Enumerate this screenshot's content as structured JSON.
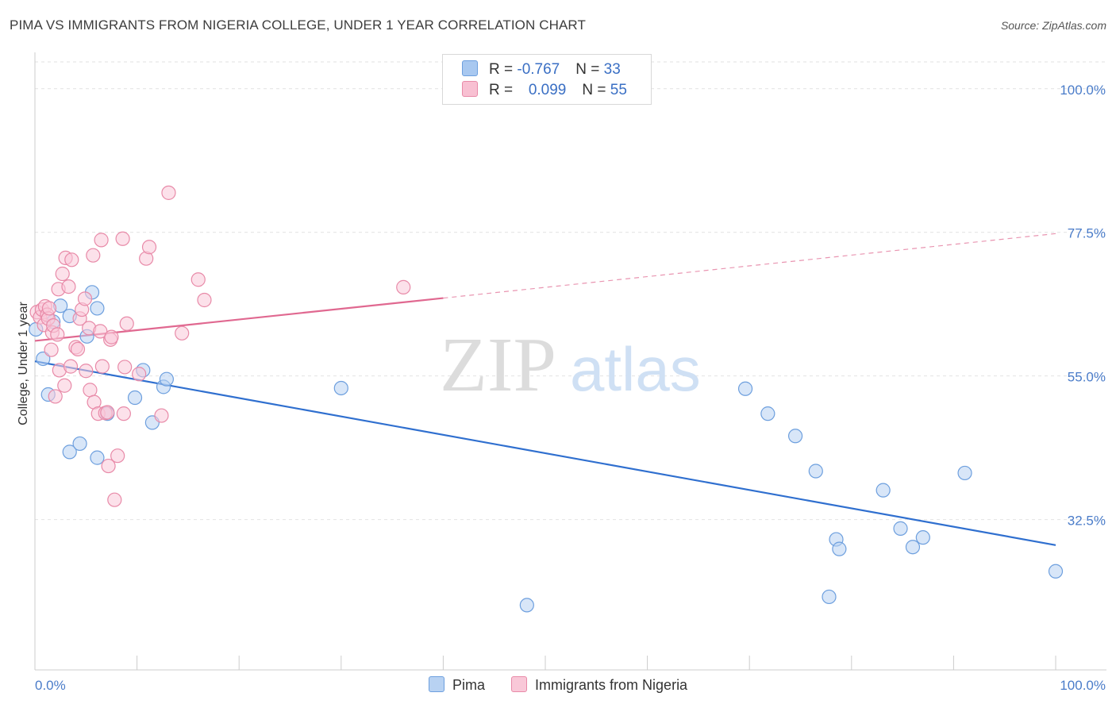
{
  "title": "PIMA VS IMMIGRANTS FROM NIGERIA COLLEGE, UNDER 1 YEAR CORRELATION CHART",
  "source": "Source: ZipAtlas.com",
  "watermark": {
    "zip": "ZIP",
    "atlas": "atlas"
  },
  "legend": {
    "rows": [
      {
        "r_label": "R = ",
        "r_value": "-0.767",
        "n_label": "N = ",
        "n_value": "33",
        "color": "#a8c8f0",
        "border": "#6d9fde"
      },
      {
        "r_label": "R = ",
        "r_value": "0.099",
        "n_label": "N = ",
        "n_value": "55",
        "color": "#f8c0d2",
        "border": "#e88aa8"
      }
    ]
  },
  "bottom_legend": [
    {
      "label": "Pima",
      "color": "#b8d2f2",
      "border": "#6d9fde"
    },
    {
      "label": "Immigrants from Nigeria",
      "color": "#f9c8d8",
      "border": "#e88aa8"
    }
  ],
  "chart_data": {
    "type": "scatter",
    "title": "PIMA VS IMMIGRANTS FROM NIGERIA COLLEGE, UNDER 1 YEAR CORRELATION CHART",
    "ylabel": "College, Under 1 year",
    "xlabel": "",
    "x_tick_labels": [
      "0.0%",
      "100.0%"
    ],
    "y_tick_labels": [
      "100.0%",
      "77.5%",
      "55.0%",
      "32.5%"
    ],
    "y_ticks": [
      100.0,
      77.5,
      55.0,
      32.5
    ],
    "xlim": [
      0,
      100
    ],
    "ylim": [
      9.7,
      104.2
    ],
    "grid": true,
    "series": [
      {
        "name": "Pima",
        "color": "#6d9fde",
        "fill": "#b8d2f2",
        "trend_color": "#2f6fcf",
        "trend": {
          "x0": 0.0,
          "y0": 57.3,
          "x1": 100.0,
          "y1": 28.5
        },
        "points": [
          [
            0.1,
            62.3
          ],
          [
            0.8,
            57.7
          ],
          [
            1.3,
            52.1
          ],
          [
            2.5,
            66.0
          ],
          [
            3.4,
            64.4
          ],
          [
            6.1,
            65.6
          ],
          [
            5.1,
            61.2
          ],
          [
            5.6,
            68.1
          ],
          [
            1.8,
            63.5
          ],
          [
            3.4,
            43.1
          ],
          [
            4.4,
            44.4
          ],
          [
            6.1,
            42.2
          ],
          [
            7.1,
            49.1
          ],
          [
            9.8,
            51.6
          ],
          [
            10.6,
            55.9
          ],
          [
            11.5,
            47.7
          ],
          [
            12.6,
            53.3
          ],
          [
            12.9,
            54.5
          ],
          [
            30.0,
            53.1
          ],
          [
            48.2,
            19.1
          ],
          [
            69.6,
            53.0
          ],
          [
            71.8,
            49.1
          ],
          [
            74.5,
            45.6
          ],
          [
            76.5,
            40.1
          ],
          [
            77.8,
            20.4
          ],
          [
            78.5,
            29.4
          ],
          [
            78.8,
            27.9
          ],
          [
            83.1,
            37.1
          ],
          [
            84.8,
            31.1
          ],
          [
            86.0,
            28.2
          ],
          [
            87.0,
            29.7
          ],
          [
            91.1,
            39.8
          ],
          [
            100.0,
            24.4
          ]
        ]
      },
      {
        "name": "Immigrants from Nigeria",
        "color": "#e88aa8",
        "fill": "#f9c8d8",
        "trend_color": "#e06890",
        "trend": {
          "x0": 0.0,
          "y0": 60.5,
          "x1": 40.0,
          "y1": 67.2
        },
        "trend_dash": {
          "x0": 40.0,
          "y0": 67.2,
          "x1": 100.0,
          "y1": 77.3
        },
        "points": [
          [
            0.2,
            65.0
          ],
          [
            0.5,
            64.2
          ],
          [
            0.7,
            65.4
          ],
          [
            0.9,
            63.0
          ],
          [
            1.0,
            65.9
          ],
          [
            1.2,
            64.6
          ],
          [
            1.3,
            64.0
          ],
          [
            1.4,
            65.6
          ],
          [
            1.6,
            59.1
          ],
          [
            1.7,
            61.8
          ],
          [
            1.8,
            62.9
          ],
          [
            2.0,
            51.8
          ],
          [
            2.3,
            68.6
          ],
          [
            2.4,
            55.9
          ],
          [
            2.7,
            71.0
          ],
          [
            2.9,
            53.5
          ],
          [
            3.0,
            73.5
          ],
          [
            3.3,
            69.0
          ],
          [
            3.5,
            56.5
          ],
          [
            3.6,
            73.2
          ],
          [
            4.0,
            59.5
          ],
          [
            4.2,
            59.2
          ],
          [
            4.4,
            64.0
          ],
          [
            4.6,
            65.4
          ],
          [
            4.9,
            67.1
          ],
          [
            5.0,
            55.8
          ],
          [
            5.3,
            62.5
          ],
          [
            5.4,
            52.8
          ],
          [
            5.7,
            73.9
          ],
          [
            5.8,
            50.9
          ],
          [
            6.2,
            49.1
          ],
          [
            6.4,
            62.0
          ],
          [
            6.5,
            76.3
          ],
          [
            6.6,
            56.5
          ],
          [
            6.9,
            49.2
          ],
          [
            7.1,
            49.3
          ],
          [
            7.2,
            40.9
          ],
          [
            7.4,
            60.7
          ],
          [
            7.5,
            61.1
          ],
          [
            7.8,
            35.6
          ],
          [
            8.1,
            42.5
          ],
          [
            8.6,
            76.5
          ],
          [
            8.7,
            49.1
          ],
          [
            8.8,
            56.4
          ],
          [
            9.0,
            63.2
          ],
          [
            10.2,
            55.3
          ],
          [
            10.9,
            73.4
          ],
          [
            11.2,
            75.2
          ],
          [
            12.4,
            48.8
          ],
          [
            13.1,
            83.7
          ],
          [
            14.4,
            61.7
          ],
          [
            16.0,
            70.1
          ],
          [
            16.6,
            66.9
          ],
          [
            36.1,
            68.9
          ],
          [
            2.2,
            61.5
          ]
        ]
      }
    ]
  }
}
